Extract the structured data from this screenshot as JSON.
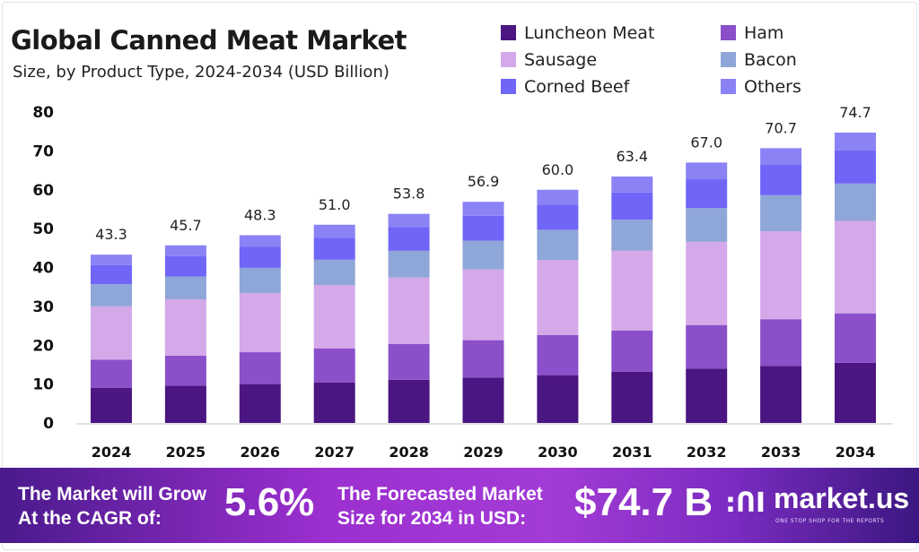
{
  "chart_data": {
    "type": "bar",
    "stacked": true,
    "title": "Global Canned Meat Market",
    "subtitle": "Size, by Product Type, 2024-2034 (USD Billion)",
    "xlabel": "",
    "ylabel": "",
    "ylim": [
      0,
      80
    ],
    "yticks": [
      0,
      10,
      20,
      30,
      40,
      50,
      60,
      70,
      80
    ],
    "grid": false,
    "legend_position": "top-right",
    "categories": [
      "2024",
      "2025",
      "2026",
      "2027",
      "2028",
      "2029",
      "2030",
      "2031",
      "2032",
      "2033",
      "2034"
    ],
    "totals": [
      "43.3",
      "45.7",
      "48.3",
      "51.0",
      "53.8",
      "56.9",
      "60.0",
      "63.4",
      "67.0",
      "70.7",
      "74.7"
    ],
    "series": [
      {
        "name": "Luncheon Meat",
        "color": "#4b1582",
        "values": [
          9.0,
          9.6,
          10.0,
          10.4,
          11.1,
          11.7,
          12.3,
          13.2,
          14.0,
          14.7,
          15.5
        ]
      },
      {
        "name": "Ham",
        "color": "#8a4fc9",
        "values": [
          7.3,
          7.7,
          8.2,
          8.8,
          9.2,
          9.6,
          10.3,
          10.6,
          11.2,
          12.0,
          12.7
        ]
      },
      {
        "name": "Sausage",
        "color": "#d5a8ea",
        "values": [
          13.7,
          14.5,
          15.2,
          16.3,
          17.1,
          18.2,
          19.3,
          20.5,
          21.4,
          22.6,
          23.8
        ]
      },
      {
        "name": "Bacon",
        "color": "#8fa6d8",
        "values": [
          5.7,
          5.9,
          6.5,
          6.5,
          6.9,
          7.4,
          7.8,
          8.0,
          8.7,
          9.3,
          9.6
        ]
      },
      {
        "name": "Corned Beef",
        "color": "#6f66f7",
        "values": [
          4.9,
          5.2,
          5.4,
          5.6,
          6.1,
          6.4,
          6.5,
          7.0,
          7.4,
          7.8,
          8.5
        ]
      },
      {
        "name": "Others",
        "color": "#8a82f5",
        "values": [
          2.7,
          2.8,
          3.0,
          3.4,
          3.4,
          3.6,
          3.8,
          4.1,
          4.3,
          4.3,
          4.6
        ]
      }
    ]
  },
  "banner": {
    "cagr_label_line1": "The Market will Grow",
    "cagr_label_line2": "At the CAGR of:",
    "cagr_value": "5.6%",
    "forecast_label_line1": "The Forecasted Market",
    "forecast_label_line2": "Size for 2034 in USD:",
    "forecast_value": "$74.7 B",
    "logo_name": "market.us",
    "logo_tagline": "ONE STOP SHOP FOR THE REPORTS"
  }
}
